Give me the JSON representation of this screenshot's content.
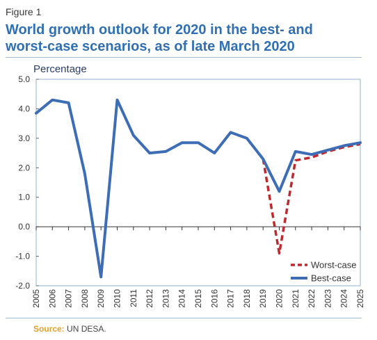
{
  "figure": {
    "label": "Figure 1",
    "title_line1": "World growth outlook for 2020 in the best- and",
    "title_line2": "worst-case scenarios, as of late March 2020",
    "source_label": "Source:",
    "source_text": "UN DESA."
  },
  "chart_data": {
    "type": "line",
    "title": "World growth outlook for 2020 in the best- and worst-case scenarios, as of late March 2020",
    "xlabel": "",
    "ylabel": "Percentage",
    "xlim": [
      2005,
      2025
    ],
    "ylim": [
      -2.0,
      5.0
    ],
    "yticks": [
      "5.0",
      "4.0",
      "3.0",
      "2.0",
      "1.0",
      "0.0",
      "-1.0",
      "-2.0"
    ],
    "ytick_values": [
      5,
      4,
      3,
      2,
      1,
      0,
      -1,
      -2
    ],
    "x": [
      2005,
      2006,
      2007,
      2008,
      2009,
      2010,
      2011,
      2012,
      2013,
      2014,
      2015,
      2016,
      2017,
      2018,
      2019,
      2020,
      2021,
      2022,
      2023,
      2024,
      2025
    ],
    "grid": false,
    "legend_position": "bottom-right",
    "series": [
      {
        "name": "Worst-case",
        "color": "#c0282d",
        "style": "dashed",
        "x": [
          2019,
          2020,
          2021,
          2022,
          2023,
          2024,
          2025
        ],
        "values": [
          2.3,
          -0.9,
          2.25,
          2.35,
          2.55,
          2.7,
          2.8
        ]
      },
      {
        "name": "Best-case",
        "color": "#3d6db5",
        "style": "solid",
        "x": [
          2005,
          2006,
          2007,
          2008,
          2009,
          2010,
          2011,
          2012,
          2013,
          2014,
          2015,
          2016,
          2017,
          2018,
          2019,
          2020,
          2021,
          2022,
          2023,
          2024,
          2025
        ],
        "values": [
          3.85,
          4.3,
          4.2,
          1.8,
          -1.7,
          4.3,
          3.1,
          2.5,
          2.55,
          2.85,
          2.85,
          2.5,
          3.2,
          3.0,
          2.3,
          1.2,
          2.55,
          2.45,
          2.6,
          2.75,
          2.85
        ]
      }
    ]
  }
}
